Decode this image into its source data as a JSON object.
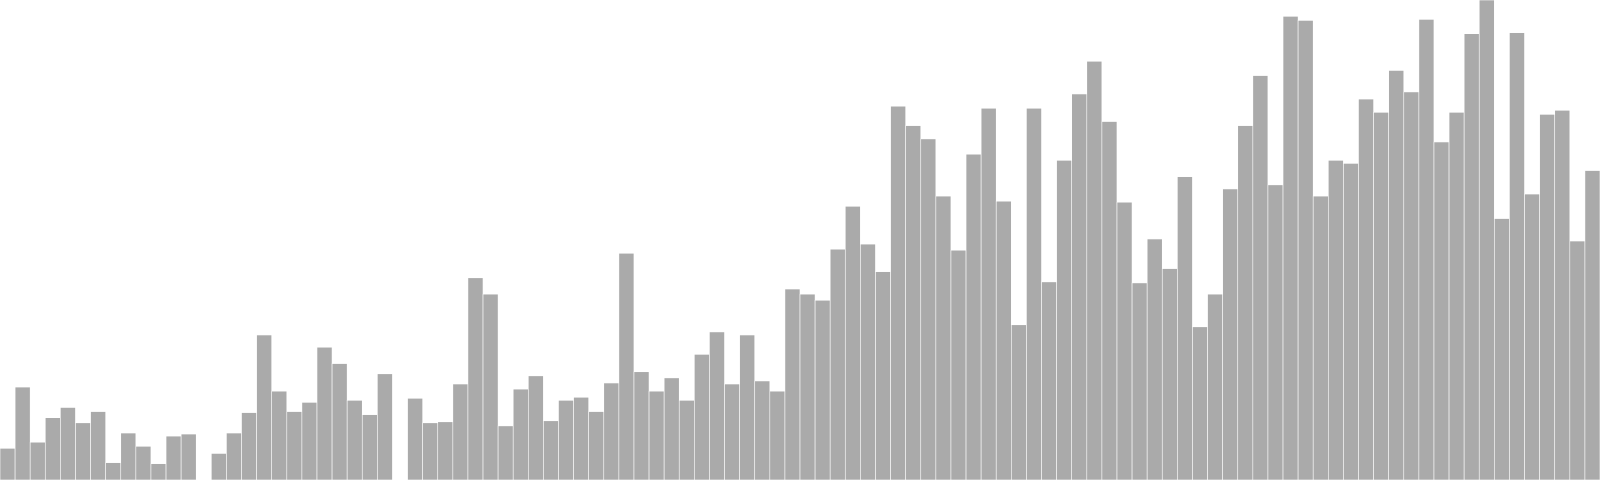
{
  "chart_data": {
    "type": "bar",
    "bar_color": "#aaaaaa",
    "ylim": [
      0,
      470
    ],
    "grid": false,
    "legend": "none",
    "values": [
      31,
      91,
      37,
      61,
      71,
      56,
      67,
      17,
      46,
      33,
      16,
      43,
      45,
      null,
      26,
      46,
      66,
      142,
      87,
      67,
      76,
      130,
      114,
      78,
      64,
      104,
      null,
      80,
      56,
      57,
      94,
      198,
      182,
      53,
      89,
      102,
      58,
      78,
      81,
      67,
      95,
      222,
      106,
      87,
      100,
      78,
      123,
      145,
      94,
      142,
      97,
      87,
      187,
      182,
      176,
      226,
      268,
      231,
      204,
      366,
      347,
      334,
      278,
      225,
      319,
      364,
      273,
      152,
      364,
      194,
      313,
      378,
      410,
      351,
      272,
      193,
      236,
      207,
      297,
      150,
      182,
      285,
      347,
      396,
      289,
      454,
      450,
      278,
      313,
      310,
      373,
      360,
      401,
      380,
      451,
      331,
      360,
      437,
      470,
      256,
      438,
      280,
      358,
      362,
      234,
      303
    ]
  }
}
